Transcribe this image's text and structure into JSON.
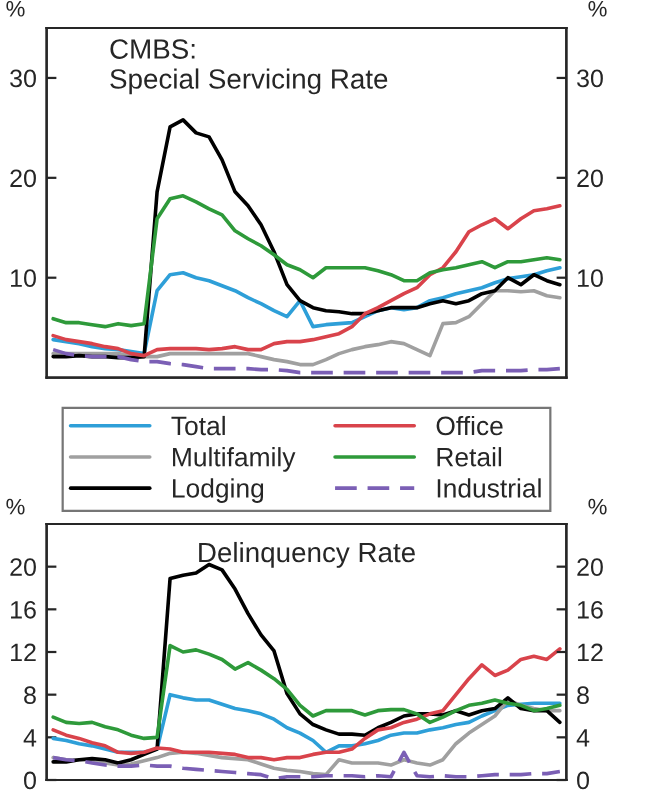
{
  "chart_data": [
    {
      "type": "line",
      "title": "CMBS:\nSpecial Servicing Rate",
      "ylabel": "%",
      "y2label": "%",
      "categories": [
        null,
        null,
        null,
        null,
        null,
        null,
        null,
        null,
        null,
        null,
        null,
        null,
        null,
        null,
        null,
        null,
        null,
        null,
        null,
        null,
        null,
        null,
        null,
        null,
        null,
        null,
        null,
        null,
        null,
        null,
        null,
        null,
        null,
        null,
        null,
        null,
        null,
        null,
        null,
        null
      ],
      "ylim": [
        0,
        35
      ],
      "yticks": [
        10,
        20,
        30
      ],
      "y2lim": [
        0,
        35
      ],
      "y2ticks": [
        10,
        20,
        30
      ],
      "tick_labels": "y",
      "grid": false,
      "series": [
        {
          "color": "#2e9fd8",
          "values": [
            3.8,
            3.6,
            3.4,
            3.1,
            2.9,
            2.8,
            2.6,
            2.4,
            8.7,
            10.3,
            10.5,
            10.0,
            9.7,
            9.2,
            8.7,
            8.0,
            7.4,
            6.7,
            6.1,
            7.7,
            5.1,
            5.3,
            5.4,
            5.5,
            6.1,
            6.7,
            7.0,
            6.8,
            7.0,
            7.7,
            8.0,
            8.4,
            8.7,
            9.0,
            9.5,
            9.9,
            10.1,
            10.3,
            10.7,
            11.0
          ]
        },
        {
          "color": "#a0a0a0",
          "values": [
            2.4,
            2.4,
            2.4,
            2.4,
            2.4,
            2.4,
            2.2,
            2.1,
            2.1,
            2.4,
            2.4,
            2.4,
            2.4,
            2.4,
            2.4,
            2.4,
            2.1,
            1.8,
            1.6,
            1.3,
            1.3,
            1.8,
            2.4,
            2.8,
            3.1,
            3.3,
            3.6,
            3.4,
            2.8,
            2.2,
            5.4,
            5.5,
            6.1,
            7.4,
            8.7,
            8.7,
            8.6,
            8.7,
            8.2,
            8.0
          ]
        },
        {
          "color": "#000000",
          "values": [
            2.1,
            2.1,
            2.2,
            2.1,
            2.1,
            2.0,
            2.0,
            2.1,
            18.6,
            25.1,
            25.8,
            24.5,
            24.1,
            21.8,
            18.6,
            17.2,
            15.3,
            12.6,
            9.3,
            7.7,
            7.0,
            6.7,
            6.6,
            6.4,
            6.4,
            6.7,
            7.0,
            7.0,
            7.0,
            7.4,
            7.7,
            7.4,
            7.7,
            8.4,
            8.7,
            10.0,
            9.3,
            10.3,
            9.7,
            9.3
          ]
        },
        {
          "color": "#d9434b",
          "values": [
            4.2,
            3.8,
            3.6,
            3.4,
            3.1,
            2.9,
            2.4,
            2.2,
            2.8,
            2.9,
            2.9,
            2.9,
            2.8,
            2.9,
            3.1,
            2.8,
            2.8,
            3.4,
            3.6,
            3.6,
            3.8,
            4.1,
            4.4,
            5.1,
            6.4,
            7.0,
            7.7,
            8.4,
            9.0,
            10.3,
            11.0,
            12.6,
            14.6,
            15.3,
            15.9,
            14.9,
            15.9,
            16.7,
            16.9,
            17.2
          ]
        },
        {
          "color": "#2e9a3a",
          "values": [
            5.9,
            5.5,
            5.5,
            5.3,
            5.1,
            5.4,
            5.2,
            5.4,
            15.9,
            17.9,
            18.2,
            17.6,
            16.9,
            16.3,
            14.7,
            13.9,
            13.2,
            12.3,
            11.3,
            10.8,
            10.0,
            11.0,
            11.0,
            11.0,
            11.0,
            10.7,
            10.3,
            9.7,
            9.7,
            10.5,
            10.8,
            11.0,
            11.3,
            11.6,
            11.0,
            11.6,
            11.6,
            11.8,
            12.0,
            11.8
          ]
        },
        {
          "color": "#7b5fb5",
          "line_style": "dashed",
          "values": [
            2.8,
            2.4,
            2.2,
            2.1,
            2.1,
            2.1,
            1.8,
            1.6,
            1.6,
            1.4,
            1.3,
            1.1,
            0.9,
            0.9,
            0.9,
            0.9,
            0.8,
            0.8,
            0.7,
            0.5,
            0.5,
            0.5,
            0.5,
            0.5,
            0.5,
            0.5,
            0.5,
            0.5,
            0.5,
            0.5,
            0.5,
            0.5,
            0.5,
            0.7,
            0.7,
            0.7,
            0.7,
            0.8,
            0.8,
            0.9
          ]
        }
      ]
    },
    {
      "type": "line",
      "title": "Delinquency Rate",
      "ylabel": "%",
      "y2label": "%",
      "legend": "top",
      "categories": [
        null,
        null,
        null,
        null,
        null,
        null,
        null,
        null,
        null,
        null,
        null,
        null,
        null,
        null,
        null,
        null,
        null,
        null,
        null,
        null,
        null,
        null,
        null,
        null,
        null,
        null,
        null,
        null,
        null,
        null,
        null,
        null,
        null,
        null,
        null,
        null,
        null,
        null,
        null,
        null
      ],
      "ylim": [
        0,
        24
      ],
      "yticks": [
        0,
        4,
        8,
        12,
        16,
        20
      ],
      "y2lim": [
        0,
        24
      ],
      "y2ticks": [
        0,
        4,
        8,
        12,
        16,
        20
      ],
      "tick_labels": "y",
      "grid": false,
      "series": [
        {
          "name": "Total",
          "color": "#2e9fd8",
          "values": [
            3.9,
            3.7,
            3.4,
            3.2,
            2.9,
            2.6,
            2.6,
            2.6,
            2.9,
            8.0,
            7.7,
            7.5,
            7.5,
            7.1,
            6.7,
            6.5,
            6.2,
            5.7,
            4.9,
            4.4,
            3.7,
            2.6,
            3.2,
            3.2,
            3.4,
            3.7,
            4.2,
            4.4,
            4.4,
            4.7,
            4.9,
            5.2,
            5.4,
            6.0,
            6.5,
            7.0,
            7.1,
            7.2,
            7.2,
            7.2
          ]
        },
        {
          "name": "Multifamily",
          "color": "#a0a0a0",
          "values": [
            2.1,
            1.9,
            1.9,
            1.9,
            1.6,
            1.4,
            1.5,
            1.8,
            2.1,
            2.5,
            2.6,
            2.5,
            2.3,
            2.1,
            2.0,
            1.9,
            1.5,
            1.1,
            0.9,
            0.8,
            0.6,
            0.5,
            1.9,
            1.6,
            1.6,
            1.6,
            1.4,
            1.9,
            1.6,
            1.4,
            1.9,
            3.4,
            4.4,
            5.2,
            6.0,
            7.5,
            7.0,
            6.7,
            6.5,
            6.5
          ]
        },
        {
          "name": "Lodging",
          "color": "#000000",
          "values": [
            1.7,
            1.7,
            1.9,
            2.0,
            1.9,
            1.6,
            1.9,
            2.4,
            2.9,
            18.9,
            19.2,
            19.4,
            20.2,
            19.7,
            17.9,
            15.6,
            13.6,
            12.1,
            8.1,
            6.2,
            5.2,
            4.7,
            4.3,
            4.3,
            4.2,
            4.9,
            5.4,
            6.0,
            6.2,
            6.2,
            6.1,
            6.5,
            6.1,
            6.5,
            6.7,
            7.7,
            6.7,
            6.5,
            6.5,
            5.4
          ]
        },
        {
          "name": "Office",
          "color": "#d9434b",
          "values": [
            4.7,
            4.2,
            3.9,
            3.5,
            3.2,
            2.6,
            2.5,
            2.6,
            3.0,
            2.9,
            2.6,
            2.6,
            2.6,
            2.5,
            2.4,
            2.1,
            2.1,
            1.9,
            2.1,
            2.1,
            2.4,
            2.6,
            2.6,
            2.9,
            3.9,
            4.7,
            4.9,
            5.4,
            5.7,
            6.2,
            6.5,
            8.0,
            9.5,
            10.8,
            9.8,
            10.3,
            11.3,
            11.6,
            11.3,
            12.3
          ]
        },
        {
          "name": "Retail",
          "color": "#2e9a3a",
          "values": [
            5.9,
            5.4,
            5.3,
            5.4,
            5.0,
            4.7,
            4.2,
            3.9,
            4.0,
            12.6,
            12.0,
            12.2,
            11.8,
            11.3,
            10.4,
            11.0,
            10.3,
            9.5,
            8.5,
            7.0,
            6.0,
            6.5,
            6.5,
            6.5,
            6.1,
            6.5,
            6.6,
            6.6,
            6.2,
            5.4,
            5.9,
            6.5,
            7.0,
            7.2,
            7.5,
            7.2,
            7.0,
            6.5,
            6.7,
            7.0
          ]
        },
        {
          "name": "Industrial",
          "color": "#7b5fb5",
          "line_style": "dashed",
          "values": [
            2.1,
            1.9,
            1.8,
            1.6,
            1.4,
            1.3,
            1.3,
            1.4,
            1.3,
            1.3,
            1.1,
            1.0,
            0.9,
            0.8,
            0.7,
            0.6,
            0.5,
            0.1,
            0.3,
            0.3,
            0.3,
            0.4,
            0.4,
            0.4,
            0.3,
            0.4,
            0.3,
            2.6,
            0.4,
            0.3,
            0.4,
            0.3,
            0.3,
            0.4,
            0.5,
            0.5,
            0.5,
            0.6,
            0.6,
            0.8
          ]
        }
      ]
    }
  ]
}
